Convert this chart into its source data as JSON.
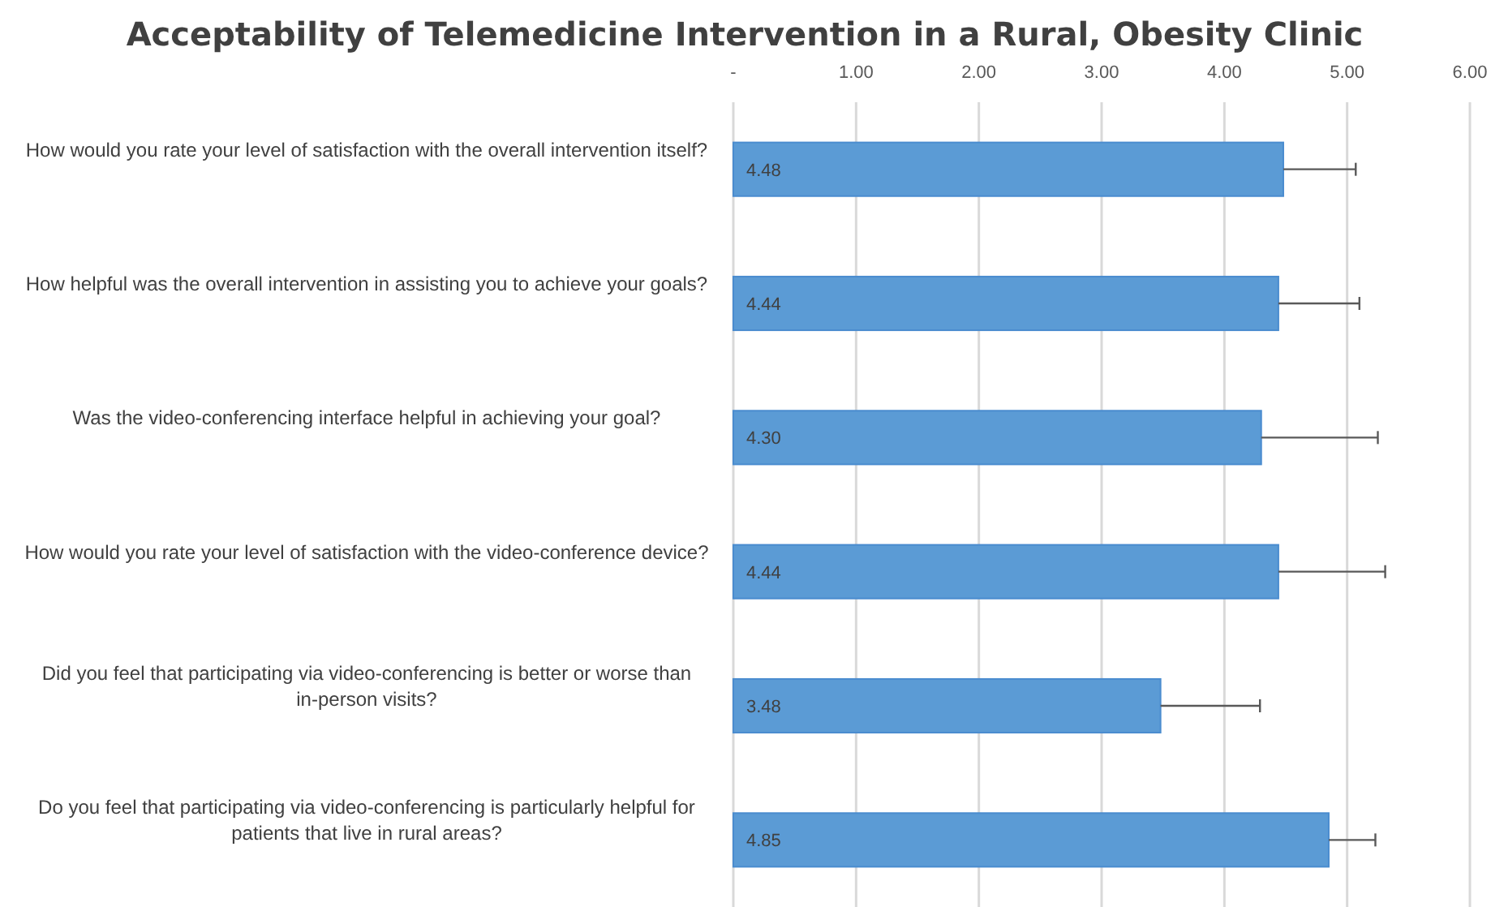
{
  "chart_data": {
    "type": "bar",
    "orientation": "horizontal",
    "title": "Acceptability of Telemedicine Intervention in a Rural, Obesity Clinic",
    "categories": [
      "How would you rate your level of satisfaction with the overall intervention itself?",
      "How helpful was the overall intervention in assisting you to achieve your goals?",
      "Was the video-conferencing interface helpful in achieving your goal?",
      "How would you rate your level of satisfaction with the video-conference device?",
      "Did you feel that participating via video-conferencing  is better or worse than in-person visits?",
      "Do you feel that participating via video-conferencing is particularly helpful for patients that live in rural areas?"
    ],
    "values": [
      4.48,
      4.44,
      4.3,
      4.44,
      3.48,
      4.85
    ],
    "value_labels": [
      "4.48",
      "4.44",
      "4.30",
      "4.44",
      "3.48",
      "4.85"
    ],
    "errors": [
      [
        4.48,
        5.07
      ],
      [
        4.44,
        5.1
      ],
      [
        4.3,
        5.25
      ],
      [
        4.44,
        5.31
      ],
      [
        3.48,
        4.29
      ],
      [
        4.85,
        5.23
      ]
    ],
    "color": "#5b9bd5",
    "xlim": [
      0,
      6
    ],
    "xticks": [
      {
        "value": 0,
        "label": "-"
      },
      {
        "value": 1,
        "label": "1.00"
      },
      {
        "value": 2,
        "label": "2.00"
      },
      {
        "value": 3,
        "label": "3.00"
      },
      {
        "value": 4,
        "label": "4.00"
      },
      {
        "value": 5,
        "label": "5.00"
      },
      {
        "value": 6,
        "label": "6.00"
      }
    ],
    "grid": "x"
  }
}
